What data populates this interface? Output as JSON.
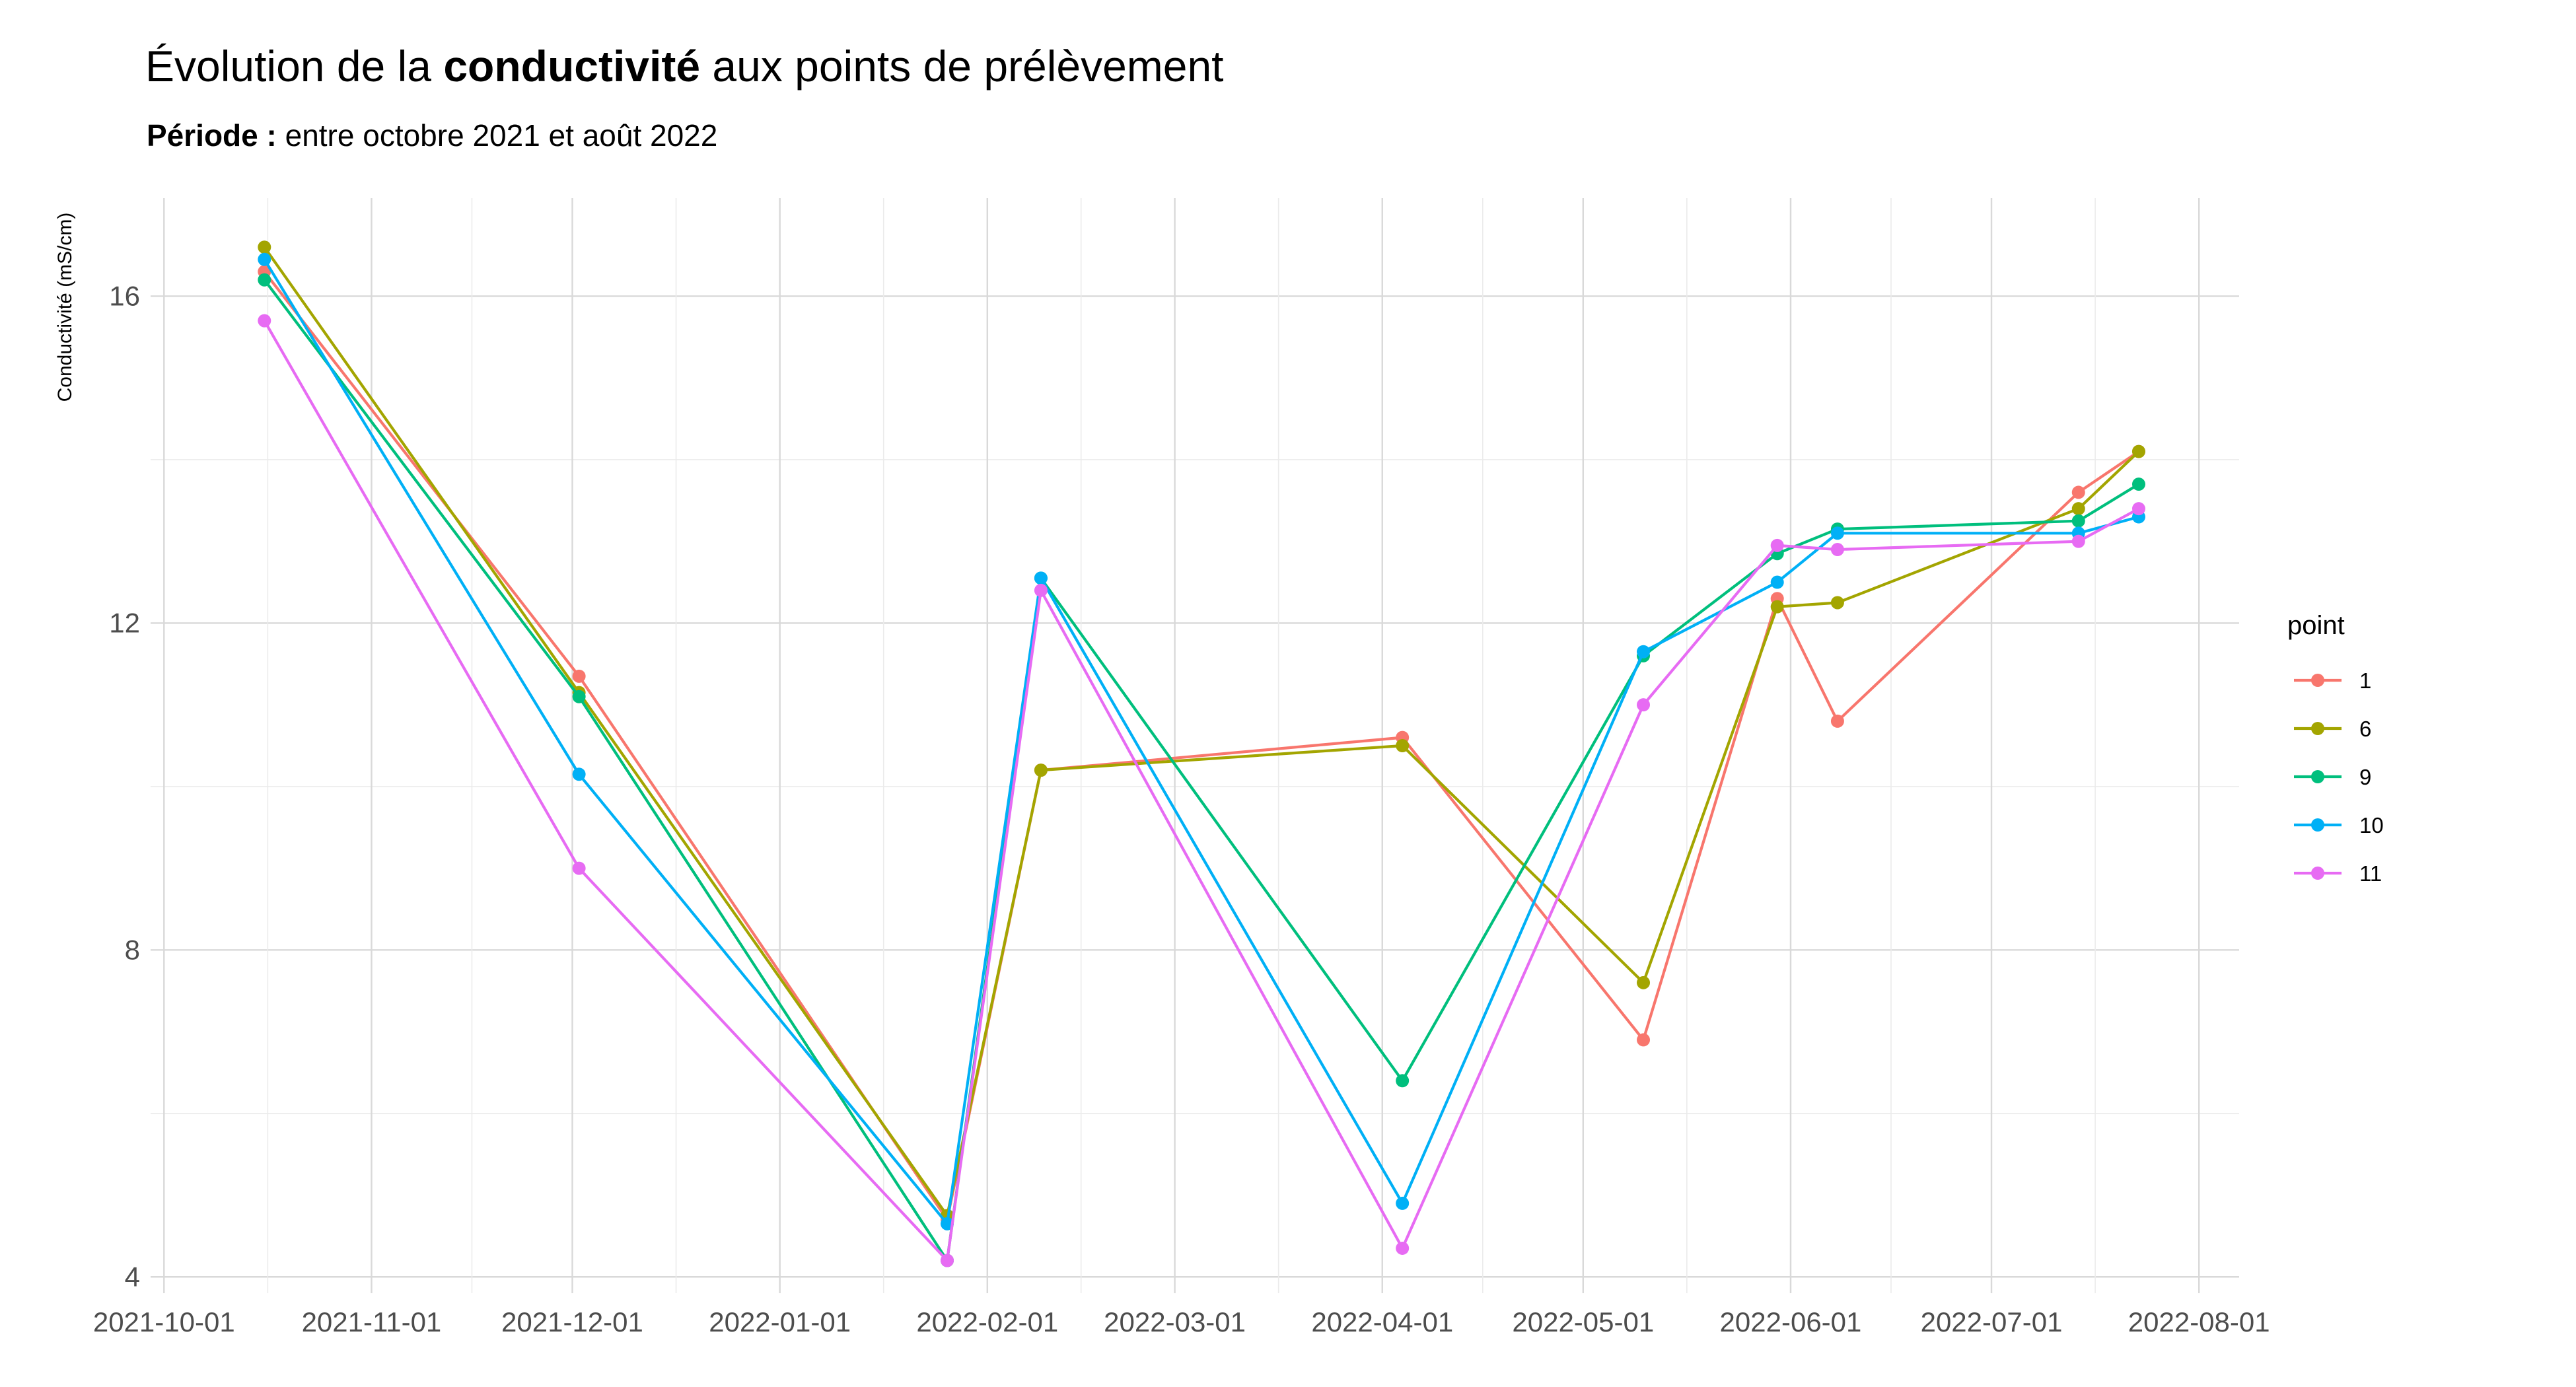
{
  "header": {
    "title_prefix": "Évolution de la ",
    "title_bold": "conductivité",
    "title_suffix": " aux points de prélèvement",
    "subtitle_bold": "Période :",
    "subtitle_rest": " entre octobre 2021 et août 2022"
  },
  "chart_data": {
    "type": "line",
    "title": "Évolution de la conductivité aux points de prélèvement",
    "subtitle": "Période : entre octobre 2021 et août 2022",
    "xlabel": "",
    "ylabel": "Conductivité (mS/cm)",
    "x_type": "date",
    "xlim": [
      "2021-09-29",
      "2022-08-07"
    ],
    "ylim": [
      3.8,
      17.2
    ],
    "x_ticks": [
      "2021-10-01",
      "2021-11-01",
      "2021-12-01",
      "2022-01-01",
      "2022-02-01",
      "2022-03-01",
      "2022-04-01",
      "2022-05-01",
      "2022-06-01",
      "2022-07-01",
      "2022-08-01"
    ],
    "y_ticks": [
      4,
      8,
      12,
      16
    ],
    "grid": true,
    "legend": {
      "title": "point",
      "position": "right"
    },
    "series": [
      {
        "name": "1",
        "color": "#F8766D",
        "points": [
          [
            "2021-10-16",
            16.3
          ],
          [
            "2021-12-02",
            11.35
          ],
          [
            "2022-01-26",
            4.7
          ],
          [
            "2022-02-09",
            10.2
          ],
          [
            "2022-04-04",
            10.6
          ],
          [
            "2022-05-10",
            6.9
          ],
          [
            "2022-05-30",
            12.3
          ],
          [
            "2022-06-08",
            10.8
          ],
          [
            "2022-07-14",
            13.6
          ],
          [
            "2022-07-23",
            14.1
          ]
        ]
      },
      {
        "name": "6",
        "color": "#A3A500",
        "points": [
          [
            "2021-10-16",
            16.6
          ],
          [
            "2021-12-02",
            11.15
          ],
          [
            "2022-01-26",
            4.75
          ],
          [
            "2022-02-09",
            10.2
          ],
          [
            "2022-04-04",
            10.5
          ],
          [
            "2022-05-10",
            7.6
          ],
          [
            "2022-05-30",
            12.2
          ],
          [
            "2022-06-08",
            12.25
          ],
          [
            "2022-07-14",
            13.4
          ],
          [
            "2022-07-23",
            14.1
          ]
        ]
      },
      {
        "name": "9",
        "color": "#00BF7D",
        "points": [
          [
            "2021-10-16",
            16.2
          ],
          [
            "2021-12-02",
            11.1
          ],
          [
            "2022-01-26",
            4.2
          ],
          [
            "2022-02-09",
            12.55
          ],
          [
            "2022-04-04",
            6.4
          ],
          [
            "2022-05-10",
            11.6
          ],
          [
            "2022-05-30",
            12.85
          ],
          [
            "2022-06-08",
            13.15
          ],
          [
            "2022-07-14",
            13.25
          ],
          [
            "2022-07-23",
            13.7
          ]
        ]
      },
      {
        "name": "10",
        "color": "#00B0F6",
        "points": [
          [
            "2021-10-16",
            16.45
          ],
          [
            "2021-12-02",
            10.15
          ],
          [
            "2022-01-26",
            4.65
          ],
          [
            "2022-02-09",
            12.55
          ],
          [
            "2022-04-04",
            4.9
          ],
          [
            "2022-05-10",
            11.65
          ],
          [
            "2022-05-30",
            12.5
          ],
          [
            "2022-06-08",
            13.1
          ],
          [
            "2022-07-14",
            13.1
          ],
          [
            "2022-07-23",
            13.3
          ]
        ]
      },
      {
        "name": "11",
        "color": "#E76BF3",
        "points": [
          [
            "2021-10-16",
            15.7
          ],
          [
            "2021-12-02",
            9.0
          ],
          [
            "2022-01-26",
            4.2
          ],
          [
            "2022-02-09",
            12.4
          ],
          [
            "2022-04-04",
            4.35
          ],
          [
            "2022-05-10",
            11.0
          ],
          [
            "2022-05-30",
            12.95
          ],
          [
            "2022-06-08",
            12.9
          ],
          [
            "2022-07-14",
            13.0
          ],
          [
            "2022-07-23",
            13.4
          ]
        ]
      }
    ]
  }
}
